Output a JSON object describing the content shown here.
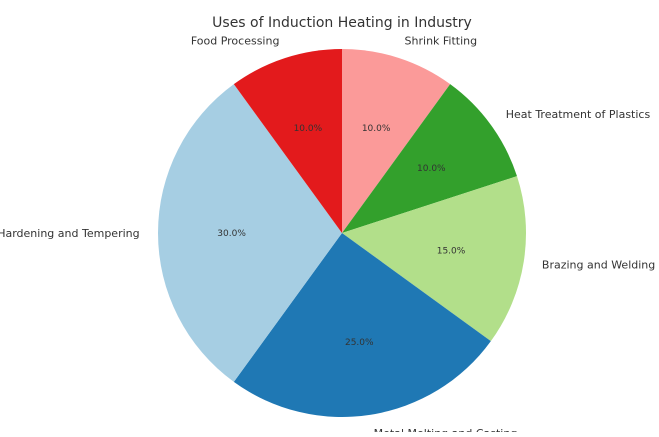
{
  "chart_data": {
    "type": "pie",
    "title": "Uses of Induction Heating in Industry",
    "start_angle_deg": 90,
    "direction": "clockwise",
    "legend": "none",
    "slices": [
      {
        "label": "Shrink Fitting",
        "value": 10.0,
        "pct_label": "10.0%",
        "color": "#FB9A99"
      },
      {
        "label": "Heat Treatment of Plastics",
        "value": 10.0,
        "pct_label": "10.0%",
        "color": "#33A02C"
      },
      {
        "label": "Brazing and Welding",
        "value": 15.0,
        "pct_label": "15.0%",
        "color": "#B2DF8A"
      },
      {
        "label": "Metal Melting and Casting",
        "value": 25.0,
        "pct_label": "25.0%",
        "color": "#1F78B4"
      },
      {
        "label": "Hardening and Tempering",
        "value": 30.0,
        "pct_label": "30.0%",
        "color": "#A6CEE3"
      },
      {
        "label": "Food Processing",
        "value": 10.0,
        "pct_label": "10.0%",
        "color": "#E31A1C"
      }
    ]
  }
}
